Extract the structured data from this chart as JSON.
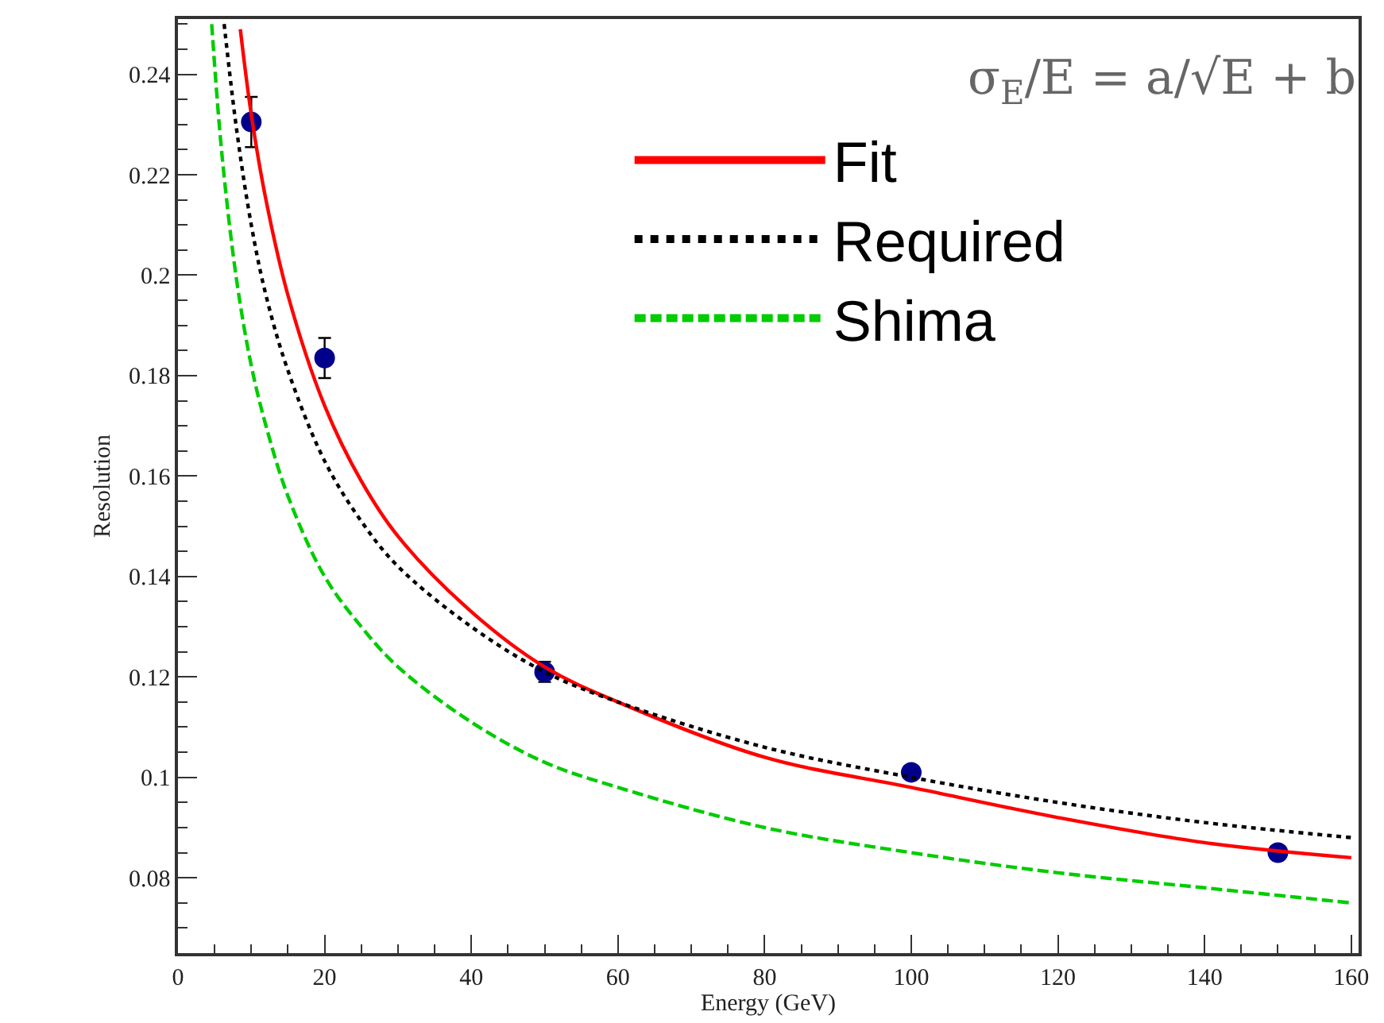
{
  "chart_data": {
    "type": "line",
    "xlabel": "Energy (GeV)",
    "ylabel": "Resolution",
    "annotations": [
      "σ$_{E}$/E = a/√E + b"
    ],
    "xlim": [
      0,
      161
    ],
    "xticks": [
      0,
      20,
      40,
      60,
      80,
      100,
      120,
      140,
      160
    ],
    "ylim": [
      0.065,
      0.251
    ],
    "yticks": [
      0.08,
      0.1,
      0.12,
      0.14,
      0.16,
      0.18,
      0.2,
      0.22,
      0.24
    ],
    "grid": false,
    "legend": "top right",
    "series": [
      {
        "type": "scatter",
        "color": "#00008b",
        "marker": "circle",
        "x": [
          10,
          20,
          50,
          100,
          150
        ],
        "values": [
          0.2305,
          0.1835,
          0.121,
          0.101,
          0.085
        ],
        "errors": [
          0.005,
          0.004,
          0.002,
          null,
          null
        ]
      },
      {
        "name": "Fit",
        "color": "#ff0000",
        "line_style": "solid",
        "x": [
          8.5,
          10,
          12,
          15,
          20,
          25,
          30,
          40,
          50,
          60,
          80,
          100,
          120,
          140,
          160
        ],
        "values": [
          0.249,
          0.232,
          0.215,
          0.196,
          0.174,
          0.159,
          0.148,
          0.133,
          0.122,
          0.115,
          0.104,
          0.098,
          0.092,
          0.087,
          0.084
        ]
      },
      {
        "name": "Required",
        "color": "#000000",
        "line_style": "dotted",
        "x": [
          6.3,
          8,
          10,
          12,
          15,
          20,
          25,
          30,
          40,
          50,
          60,
          80,
          100,
          120,
          140,
          160
        ],
        "values": [
          0.25,
          0.229,
          0.21,
          0.196,
          0.181,
          0.163,
          0.151,
          0.142,
          0.13,
          0.121,
          0.115,
          0.106,
          0.1,
          0.095,
          0.091,
          0.088
        ]
      },
      {
        "name": "Shima",
        "color": "#00cc00",
        "line_style": "dashed",
        "x": [
          4.6,
          6,
          8,
          10,
          12,
          15,
          20,
          25,
          30,
          40,
          50,
          60,
          80,
          100,
          120,
          140,
          160
        ],
        "values": [
          0.25,
          0.224,
          0.199,
          0.182,
          0.17,
          0.156,
          0.14,
          0.13,
          0.122,
          0.111,
          0.103,
          0.098,
          0.09,
          0.085,
          0.081,
          0.078,
          0.075
        ]
      }
    ]
  }
}
